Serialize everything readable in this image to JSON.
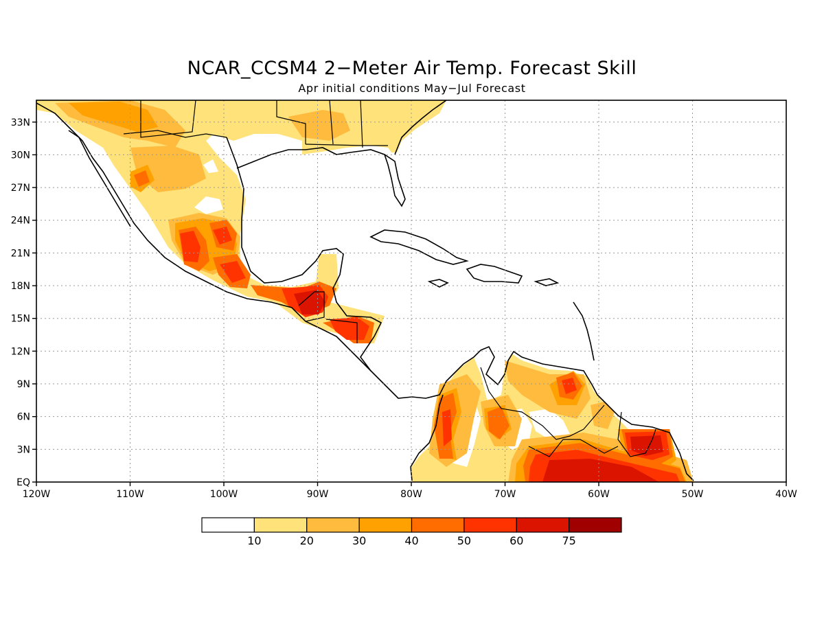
{
  "title": "NCAR_CCSM4 2−Meter Air Temp. Forecast Skill",
  "subtitle": "Apr initial conditions  May−Jul Forecast",
  "map": {
    "lon_range": [
      -120,
      -40
    ],
    "lat_range": [
      0,
      35
    ],
    "lon_ticks": [
      {
        "value": -120,
        "label": "120W"
      },
      {
        "value": -110,
        "label": "110W"
      },
      {
        "value": -100,
        "label": "100W"
      },
      {
        "value": -90,
        "label": "90W"
      },
      {
        "value": -80,
        "label": "80W"
      },
      {
        "value": -70,
        "label": "70W"
      },
      {
        "value": -60,
        "label": "60W"
      },
      {
        "value": -50,
        "label": "50W"
      },
      {
        "value": -40,
        "label": "40W"
      }
    ],
    "lat_ticks": [
      {
        "value": 0,
        "label": "EQ"
      },
      {
        "value": 3,
        "label": "3N"
      },
      {
        "value": 6,
        "label": "6N"
      },
      {
        "value": 9,
        "label": "9N"
      },
      {
        "value": 12,
        "label": "12N"
      },
      {
        "value": 15,
        "label": "15N"
      },
      {
        "value": 18,
        "label": "18N"
      },
      {
        "value": 21,
        "label": "21N"
      },
      {
        "value": 24,
        "label": "24N"
      },
      {
        "value": 27,
        "label": "27N"
      },
      {
        "value": 30,
        "label": "30N"
      },
      {
        "value": 33,
        "label": "33N"
      }
    ],
    "grid": true
  },
  "colorbar": {
    "colors": [
      "#ffffff",
      "#ffe27a",
      "#ffbb3d",
      "#ffa100",
      "#ff6d00",
      "#ff3300",
      "#db1400",
      "#a00000"
    ],
    "labels": [
      "10",
      "20",
      "30",
      "40",
      "50",
      "60",
      "75"
    ]
  }
}
